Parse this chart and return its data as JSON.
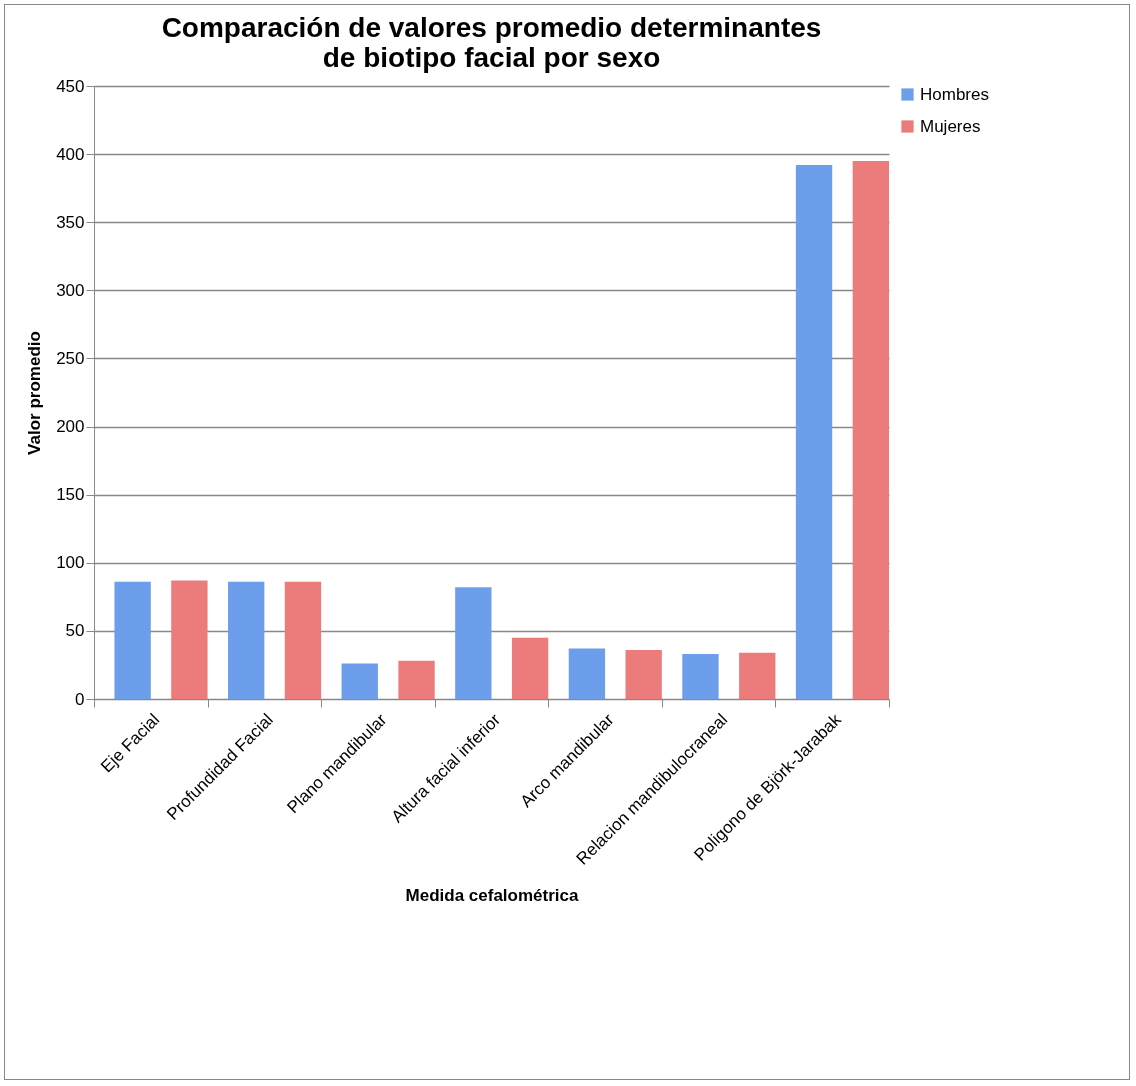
{
  "chart_data": {
    "type": "bar",
    "title": "Comparación de valores promedio determinantes de biotipo facial por sexo",
    "xlabel": "Medida cefalométrica",
    "ylabel": "Valor promedio",
    "categories": [
      "Eje Facial",
      "Profundidad Facial",
      "Plano mandibular",
      "Altura facial inferior",
      "Arco mandibular",
      "Relacion mandibulocraneal",
      "Poligono de Björk-Jarabak"
    ],
    "series": [
      {
        "name": "Hombres",
        "color": "#6d9eeb",
        "values": [
          86,
          86,
          26,
          82,
          37,
          33,
          392
        ]
      },
      {
        "name": "Mujeres",
        "color": "#ec7c7c",
        "values": [
          87,
          86,
          28,
          45,
          36,
          34,
          395
        ]
      }
    ],
    "ylim": [
      0,
      450
    ],
    "yticks": [
      0,
      50,
      100,
      150,
      200,
      250,
      300,
      350,
      400,
      450
    ],
    "grid": "y",
    "legend": "right"
  }
}
